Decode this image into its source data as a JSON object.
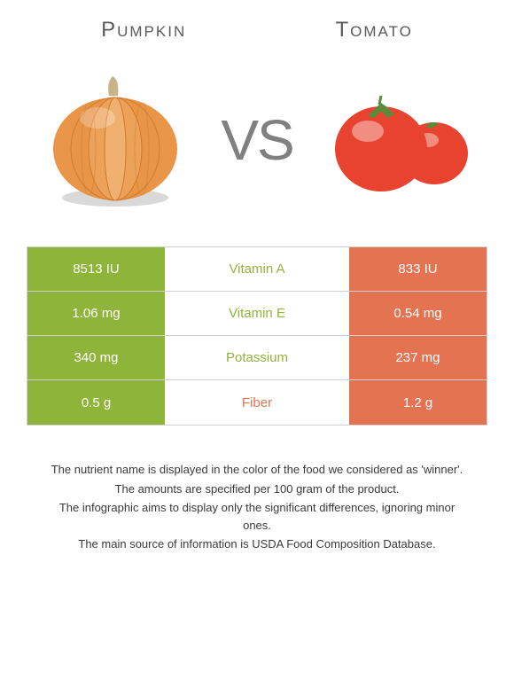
{
  "titles": {
    "left": "Pumpkin",
    "right": "Tomato"
  },
  "vs_text": "VS",
  "colors": {
    "left_food": "#8fb43a",
    "right_food": "#e47352",
    "border": "#d0d0d0",
    "pumpkin_body": "#e89548",
    "pumpkin_stem": "#c9b388",
    "tomato_body": "#e8432e",
    "tomato_stem": "#5a8a3a"
  },
  "nutrients": [
    {
      "name": "Vitamin A",
      "left_value": "8513 IU",
      "right_value": "833 IU",
      "winner": "left"
    },
    {
      "name": "Vitamin E",
      "left_value": "1.06 mg",
      "right_value": "0.54 mg",
      "winner": "left"
    },
    {
      "name": "Potassium",
      "left_value": "340 mg",
      "right_value": "237 mg",
      "winner": "left"
    },
    {
      "name": "Fiber",
      "left_value": "0.5 g",
      "right_value": "1.2 g",
      "winner": "right"
    }
  ],
  "footer": {
    "line1": "The nutrient name is displayed in the color of the food we considered as 'winner'.",
    "line2": "The amounts are specified per 100 gram of the product.",
    "line3": "The infographic aims to display only the significant differences, ignoring minor ones.",
    "line4": "The main source of information is USDA Food Composition Database."
  }
}
